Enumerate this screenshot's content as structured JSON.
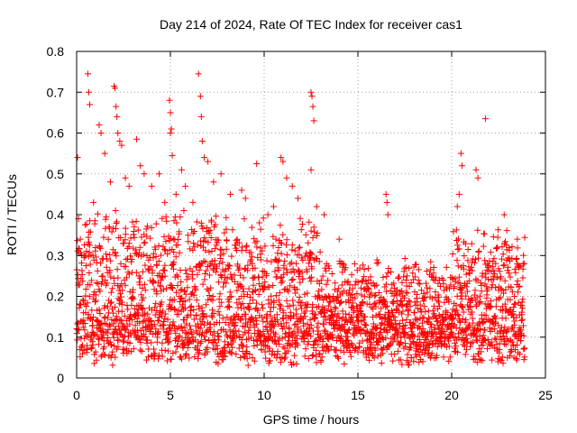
{
  "chart_data": {
    "type": "scatter",
    "title": "Day 214 of 2024, Rate Of TEC Index for receiver cas1",
    "xlabel": "GPS time / hours",
    "ylabel": "ROTI / TECUs",
    "xlim": [
      0,
      25
    ],
    "ylim": [
      0,
      0.8
    ],
    "xticks": [
      0,
      5,
      10,
      15,
      20,
      25
    ],
    "yticks": [
      0,
      0.1,
      0.2,
      0.3,
      0.4,
      0.5,
      0.6,
      0.7,
      0.8
    ],
    "grid": true,
    "marker": "+",
    "color": "#ff0000",
    "series": [
      {
        "name": "ROTI",
        "points": [
          [
            0.05,
            0.54
          ],
          [
            0.1,
            0.39
          ],
          [
            0.6,
            0.745
          ],
          [
            0.65,
            0.7
          ],
          [
            0.7,
            0.67
          ],
          [
            0.9,
            0.43
          ],
          [
            1.2,
            0.62
          ],
          [
            1.3,
            0.6
          ],
          [
            1.5,
            0.55
          ],
          [
            1.8,
            0.48
          ],
          [
            2.0,
            0.715
          ],
          [
            2.05,
            0.71
          ],
          [
            2.1,
            0.665
          ],
          [
            2.15,
            0.64
          ],
          [
            2.2,
            0.6
          ],
          [
            2.3,
            0.58
          ],
          [
            2.4,
            0.57
          ],
          [
            2.6,
            0.49
          ],
          [
            2.8,
            0.47
          ],
          [
            3.2,
            0.585
          ],
          [
            3.4,
            0.52
          ],
          [
            3.6,
            0.5
          ],
          [
            4.0,
            0.47
          ],
          [
            4.4,
            0.5
          ],
          [
            4.7,
            0.43
          ],
          [
            4.95,
            0.68
          ],
          [
            5.0,
            0.65
          ],
          [
            5.05,
            0.61
          ],
          [
            5.0,
            0.6
          ],
          [
            5.1,
            0.545
          ],
          [
            5.3,
            0.45
          ],
          [
            5.6,
            0.51
          ],
          [
            5.8,
            0.47
          ],
          [
            6.2,
            0.43
          ],
          [
            6.5,
            0.745
          ],
          [
            6.6,
            0.69
          ],
          [
            6.65,
            0.64
          ],
          [
            6.7,
            0.58
          ],
          [
            6.8,
            0.54
          ],
          [
            7.0,
            0.53
          ],
          [
            7.3,
            0.48
          ],
          [
            7.7,
            0.5
          ],
          [
            8.2,
            0.45
          ],
          [
            8.8,
            0.46
          ],
          [
            9.0,
            0.44
          ],
          [
            9.6,
            0.525
          ],
          [
            10.2,
            0.4
          ],
          [
            10.5,
            0.42
          ],
          [
            10.9,
            0.54
          ],
          [
            11.0,
            0.53
          ],
          [
            11.2,
            0.49
          ],
          [
            11.5,
            0.47
          ],
          [
            11.8,
            0.44
          ],
          [
            12.5,
            0.7
          ],
          [
            12.55,
            0.69
          ],
          [
            12.6,
            0.665
          ],
          [
            12.65,
            0.63
          ],
          [
            12.5,
            0.51
          ],
          [
            12.8,
            0.42
          ],
          [
            13.2,
            0.4
          ],
          [
            14.0,
            0.34
          ],
          [
            16.5,
            0.45
          ],
          [
            16.55,
            0.43
          ],
          [
            16.6,
            0.4
          ],
          [
            20.3,
            0.42
          ],
          [
            20.4,
            0.45
          ],
          [
            20.5,
            0.55
          ],
          [
            20.55,
            0.52
          ],
          [
            21.3,
            0.51
          ],
          [
            21.4,
            0.49
          ],
          [
            21.8,
            0.635
          ],
          [
            22.8,
            0.4
          ],
          [
            23.5,
            0.34
          ]
        ]
      }
    ]
  }
}
